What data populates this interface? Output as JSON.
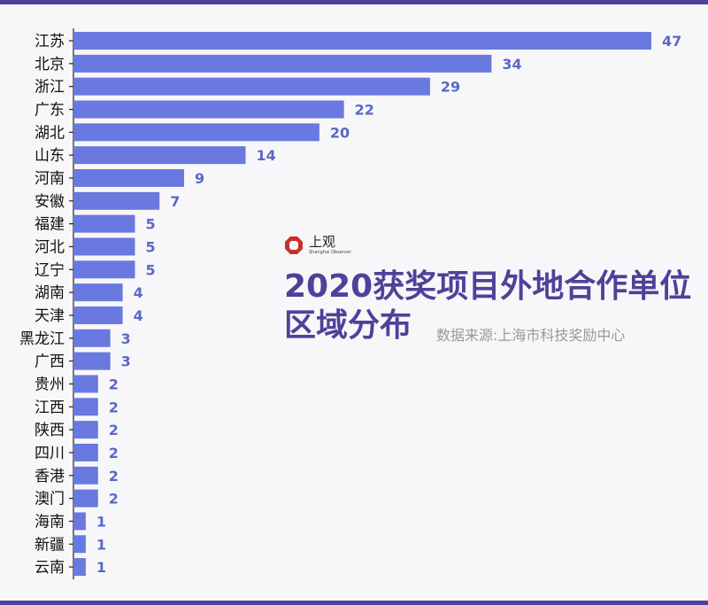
{
  "brand": {
    "name_cn": "上观",
    "name_en": "Shanghai Observer",
    "color": "#c9302c"
  },
  "title_line1": "2020获奖项目外地合作单位",
  "title_line2": "区域分布",
  "source": "数据来源:上海市科技奖励中心",
  "colors": {
    "bar": "#6a79df",
    "label": "#5a68c8",
    "title": "#4d4299"
  },
  "chart_data": {
    "type": "bar",
    "orientation": "horizontal",
    "categories": [
      "江苏",
      "北京",
      "浙江",
      "广东",
      "湖北",
      "山东",
      "河南",
      "安徽",
      "福建",
      "河北",
      "辽宁",
      "湖南",
      "天津",
      "黑龙江",
      "广西",
      "贵州",
      "江西",
      "陕西",
      "四川",
      "香港",
      "澳门",
      "海南",
      "新疆",
      "云南"
    ],
    "values": [
      47,
      34,
      29,
      22,
      20,
      14,
      9,
      7,
      5,
      5,
      5,
      4,
      4,
      3,
      3,
      2,
      2,
      2,
      2,
      2,
      2,
      1,
      1,
      1
    ],
    "xlim": [
      0,
      47
    ],
    "grid": false,
    "data_labels": true
  }
}
